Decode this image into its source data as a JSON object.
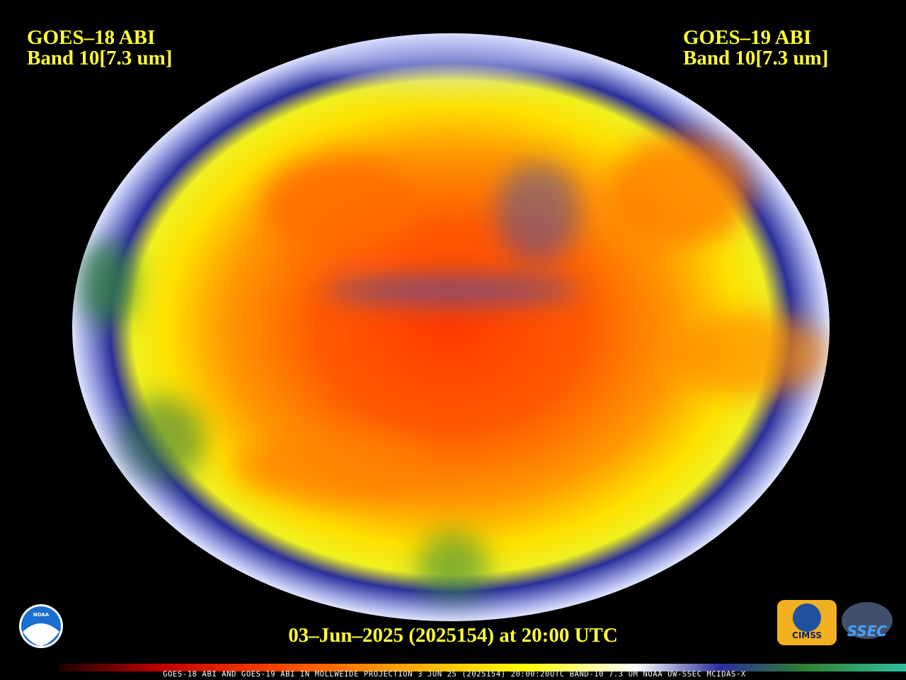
{
  "header": {
    "left": {
      "line1": "GOES–18 ABI",
      "line2": "Band 10[7.3 um]"
    },
    "right": {
      "line1": "GOES–19 ABI",
      "line2": "Band 10[7.3 um]"
    }
  },
  "timestamp": "03–Jun–2025 (2025154) at 20:00 UTC",
  "footer": "GOES-18 ABI AND GOES-19 ABI IN MOLLWEIDE PROJECTION 3 JUN 25 (2025154) 20:00:20UTC BAND-10 7.3 UM NOAA UW-SSEC MCIDAS-X",
  "logos": {
    "noaa": "NOAA",
    "cimss": "CIMSS",
    "ssec": "SSEC"
  }
}
